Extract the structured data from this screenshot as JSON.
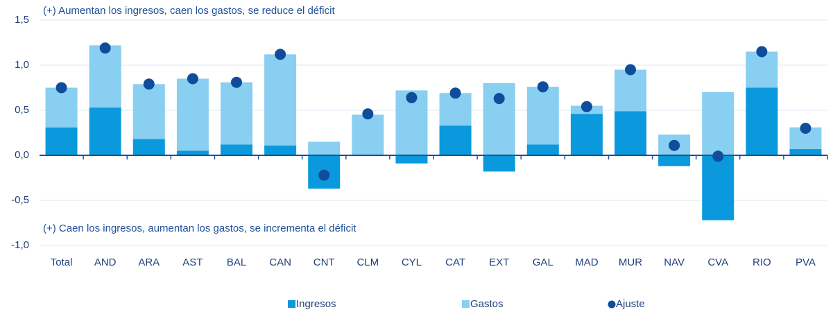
{
  "chart_data": {
    "type": "bar",
    "stacked": true,
    "annotations": [
      "(+) Aumentan los ingresos, caen los gastos, se reduce el déficit",
      "(+) Caen los ingresos, aumentan los gastos, se incrementa el déficit"
    ],
    "categories": [
      "Total",
      "AND",
      "ARA",
      "AST",
      "BAL",
      "CAN",
      "CNT",
      "CLM",
      "CYL",
      "CAT",
      "EXT",
      "GAL",
      "MAD",
      "MUR",
      "NAV",
      "CVA",
      "RIO",
      "PVA"
    ],
    "series": [
      {
        "name": "Ingresos",
        "type": "bar",
        "color": "#0a99dc",
        "values": [
          0.31,
          0.53,
          0.18,
          0.05,
          0.12,
          0.11,
          -0.37,
          0,
          -0.09,
          0.33,
          -0.18,
          0.12,
          0.46,
          0.49,
          -0.12,
          -0.72,
          0.75,
          0.07
        ]
      },
      {
        "name": "Gastos",
        "type": "bar",
        "color": "#88cff1",
        "values": [
          0.44,
          0.69,
          0.61,
          0.8,
          0.69,
          1.01,
          0.15,
          0.45,
          0.72,
          0.36,
          0.8,
          0.64,
          0.09,
          0.46,
          0.23,
          0.7,
          0.4,
          0.24
        ]
      },
      {
        "name": "Ajuste",
        "type": "scatter",
        "color": "#0f4c9c",
        "values": [
          0.75,
          1.19,
          0.79,
          0.85,
          0.81,
          1.12,
          -0.22,
          0.46,
          0.64,
          0.69,
          0.63,
          0.76,
          0.54,
          0.95,
          0.11,
          -0.01,
          1.15,
          0.3
        ]
      }
    ],
    "ylim": [
      -1.0,
      1.5
    ],
    "yticks": [
      {
        "value": -1.0,
        "label": "-1,0"
      },
      {
        "value": -0.5,
        "label": "-0,5"
      },
      {
        "value": 0,
        "label": "0,0"
      },
      {
        "value": 0.5,
        "label": "0,5"
      },
      {
        "value": 1.0,
        "label": "1,0"
      },
      {
        "value": 1.5,
        "label": "1,5"
      }
    ],
    "grid": true
  }
}
